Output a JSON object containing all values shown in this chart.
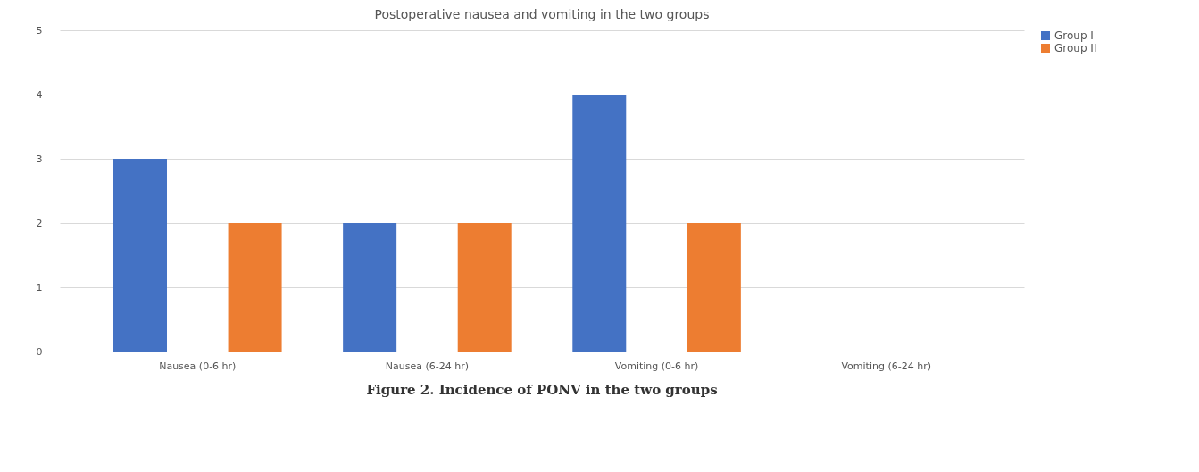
{
  "chart_data": {
    "type": "bar",
    "title": "Postoperative nausea and vomiting in the two groups",
    "categories": [
      "Nausea (0-6 hr)",
      "Nausea (6-24 hr)",
      "Vomiting (0-6 hr)",
      "Vomiting (6-24 hr)"
    ],
    "series": [
      {
        "name": "Group I",
        "color": "#4472c4",
        "values": [
          3,
          2,
          4,
          0
        ]
      },
      {
        "name": "Group II",
        "color": "#ed7d31",
        "values": [
          2,
          2,
          2,
          0
        ]
      }
    ],
    "ylim": [
      0,
      5
    ],
    "yticks": [
      0,
      1,
      2,
      3,
      4,
      5
    ],
    "grid": "y",
    "legend": "right",
    "annotations": [
      "Figure 2. Incidence of PONV in the two groups"
    ]
  }
}
